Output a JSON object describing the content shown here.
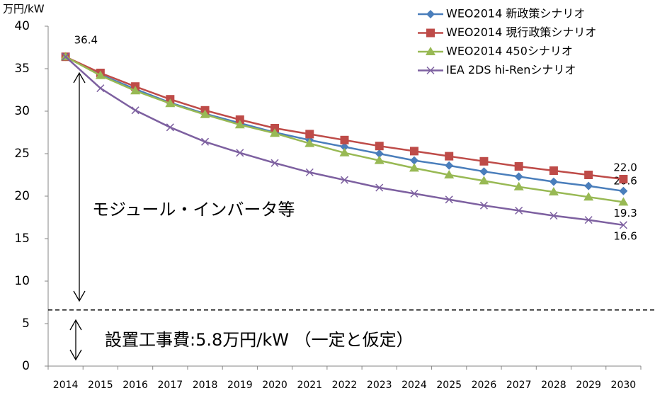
{
  "chart_data": {
    "type": "line",
    "y_axis_label": "万円/kW",
    "categories": [
      "2014",
      "2015",
      "2016",
      "2017",
      "2018",
      "2019",
      "2020",
      "2021",
      "2022",
      "2023",
      "2024",
      "2025",
      "2026",
      "2027",
      "2028",
      "2029",
      "2030"
    ],
    "series": [
      {
        "name": "WEO2014 新政策シナリオ",
        "color": "#4a7ebb",
        "marker": "diamond",
        "values": [
          36.4,
          34.3,
          32.6,
          31.0,
          29.7,
          28.6,
          27.5,
          26.6,
          25.8,
          25.0,
          24.2,
          23.6,
          22.9,
          22.3,
          21.7,
          21.2,
          20.6
        ],
        "value_labels": [
          "36.4",
          null,
          null,
          null,
          null,
          null,
          null,
          null,
          null,
          null,
          null,
          null,
          null,
          null,
          null,
          null,
          "20.6"
        ]
      },
      {
        "name": "WEO2014 現行政策シナリオ",
        "color": "#be4b48",
        "marker": "square",
        "values": [
          36.4,
          34.5,
          32.9,
          31.4,
          30.1,
          29.0,
          28.0,
          27.3,
          26.6,
          25.9,
          25.3,
          24.7,
          24.1,
          23.5,
          23.0,
          22.5,
          22.0
        ],
        "value_labels": [
          null,
          null,
          null,
          null,
          null,
          null,
          null,
          null,
          null,
          null,
          null,
          null,
          null,
          null,
          null,
          null,
          "22.0"
        ]
      },
      {
        "name": "WEO2014 450シナリオ",
        "color": "#98b954",
        "marker": "triangle",
        "values": [
          36.4,
          34.2,
          32.4,
          30.9,
          29.6,
          28.4,
          27.4,
          26.2,
          25.1,
          24.2,
          23.3,
          22.5,
          21.8,
          21.1,
          20.5,
          19.9,
          19.3
        ],
        "value_labels": [
          null,
          null,
          null,
          null,
          null,
          null,
          null,
          null,
          null,
          null,
          null,
          null,
          null,
          null,
          null,
          null,
          "19.3"
        ]
      },
      {
        "name": "IEA  2DS hi-Renシナリオ",
        "color": "#7d60a0",
        "marker": "x",
        "values": [
          36.4,
          32.7,
          30.1,
          28.1,
          26.4,
          25.1,
          23.9,
          22.8,
          21.9,
          21.0,
          20.3,
          19.6,
          18.9,
          18.3,
          17.7,
          17.2,
          16.6
        ],
        "value_labels": [
          null,
          null,
          null,
          null,
          null,
          null,
          null,
          null,
          null,
          null,
          null,
          null,
          null,
          null,
          null,
          null,
          "16.6"
        ]
      }
    ],
    "ylim": [
      0,
      40
    ],
    "yticks": [
      0,
      5,
      10,
      15,
      20,
      25,
      30,
      35,
      40
    ],
    "grid": false,
    "reference_line": 6.6,
    "annotations": [
      "モジュール・インバータ等",
      "設置工事費:5.8万円/kW （一定と仮定）"
    ]
  }
}
